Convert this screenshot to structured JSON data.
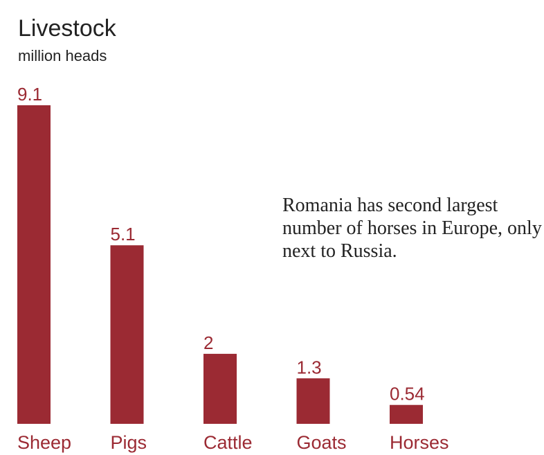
{
  "chart_data": {
    "type": "bar",
    "title": "Livestock",
    "subtitle": "million heads",
    "categories": [
      "Sheep",
      "Pigs",
      "Cattle",
      "Goats",
      "Horses"
    ],
    "values": [
      9.1,
      5.1,
      2,
      1.3,
      0.54
    ],
    "value_labels": [
      "9.1",
      "5.1",
      "2",
      "1.3",
      "0.54"
    ],
    "annotation": "Romania has second largest number of horses in Europe, only next to Russia.",
    "bar_color": "#9b2a33",
    "label_color": "#9b2a33",
    "grid": false
  }
}
